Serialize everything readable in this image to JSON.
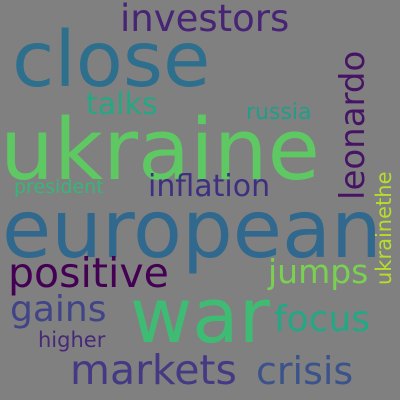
{
  "background": "#808080",
  "words": [
    {
      "text": "ukraine",
      "color": "#5ec962"
    },
    {
      "text": "european",
      "color": "#31688e"
    },
    {
      "text": "close",
      "color": "#2e6f8e"
    },
    {
      "text": "war",
      "color": "#3fbc73"
    },
    {
      "text": "investors",
      "color": "#482475"
    },
    {
      "text": "positive",
      "color": "#440154"
    },
    {
      "text": "leonardo",
      "color": "#471365"
    },
    {
      "text": "talks",
      "color": "#26a784"
    },
    {
      "text": "russia",
      "color": "#1f9e89"
    },
    {
      "text": "inflation",
      "color": "#3e2f80"
    },
    {
      "text": "jumps",
      "color": "#7ad151"
    },
    {
      "text": "gains",
      "color": "#414487"
    },
    {
      "text": "focus",
      "color": "#22a884"
    },
    {
      "text": "markets",
      "color": "#443983"
    },
    {
      "text": "crisis",
      "color": "#3b528b"
    },
    {
      "text": "higher",
      "color": "#482878"
    },
    {
      "text": "president",
      "color": "#35b779"
    },
    {
      "text": "ukrainethe",
      "color": "#b5de2b"
    }
  ]
}
